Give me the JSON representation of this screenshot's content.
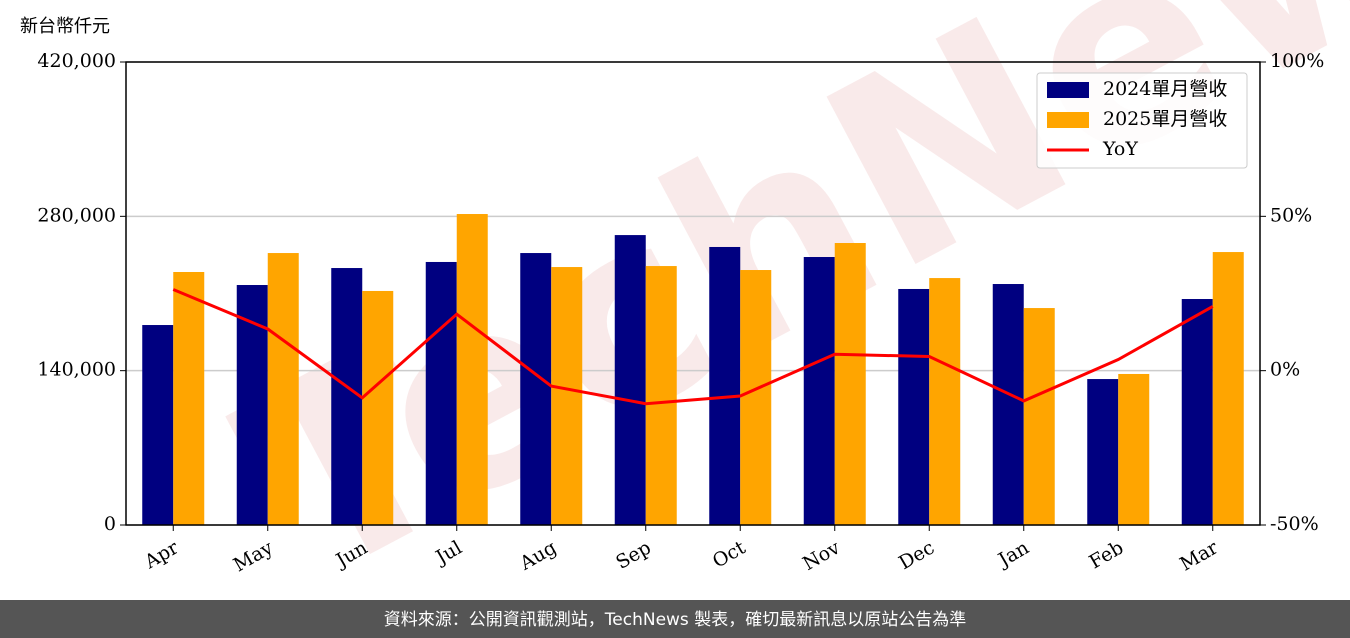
{
  "chart_data": {
    "type": "bar",
    "ylabel": "新台幣仟元",
    "watermark": "TechNews",
    "footer": "資料來源：公開資訊觀測站，TechNews 製表，確切最新訊息以原站公告為準",
    "categories": [
      "Apr",
      "May",
      "Jun",
      "Jul",
      "Aug",
      "Sep",
      "Oct",
      "Nov",
      "Dec",
      "Jan",
      "Feb",
      "Mar"
    ],
    "series": [
      {
        "name": "2024單月營收",
        "color": "#000080",
        "values": [
          181400,
          217700,
          233100,
          238600,
          246700,
          263000,
          252200,
          243100,
          214100,
          218600,
          132400,
          205000
        ]
      },
      {
        "name": "2025單月營收",
        "color": "#ffa500",
        "values": [
          229500,
          246700,
          212300,
          282100,
          234000,
          234900,
          231300,
          255800,
          224000,
          196800,
          137000,
          247600
        ]
      },
      {
        "name": "YoY",
        "color": "#ff0000",
        "type": "line",
        "axis": "y2",
        "values": [
          26.3,
          13.5,
          -8.8,
          18.3,
          -5.0,
          -10.7,
          -8.2,
          5.3,
          4.6,
          -9.8,
          3.6,
          20.8
        ]
      }
    ],
    "ylim": [
      0,
      420000
    ],
    "yticks": [
      0,
      {
        "value": 140000,
        "label": "140,000"
      },
      {
        "value": 280000,
        "label": "280,000"
      },
      {
        "value": 420000,
        "label": "420,000"
      }
    ],
    "y2lim": [
      -50,
      100
    ],
    "y2ticks": [
      {
        "value": -50,
        "label": "-50%"
      },
      {
        "value": 0,
        "label": "0%"
      },
      {
        "value": 50,
        "label": "50%"
      },
      {
        "value": 100,
        "label": "100%"
      }
    ],
    "grid": true,
    "legend": "upper right"
  }
}
